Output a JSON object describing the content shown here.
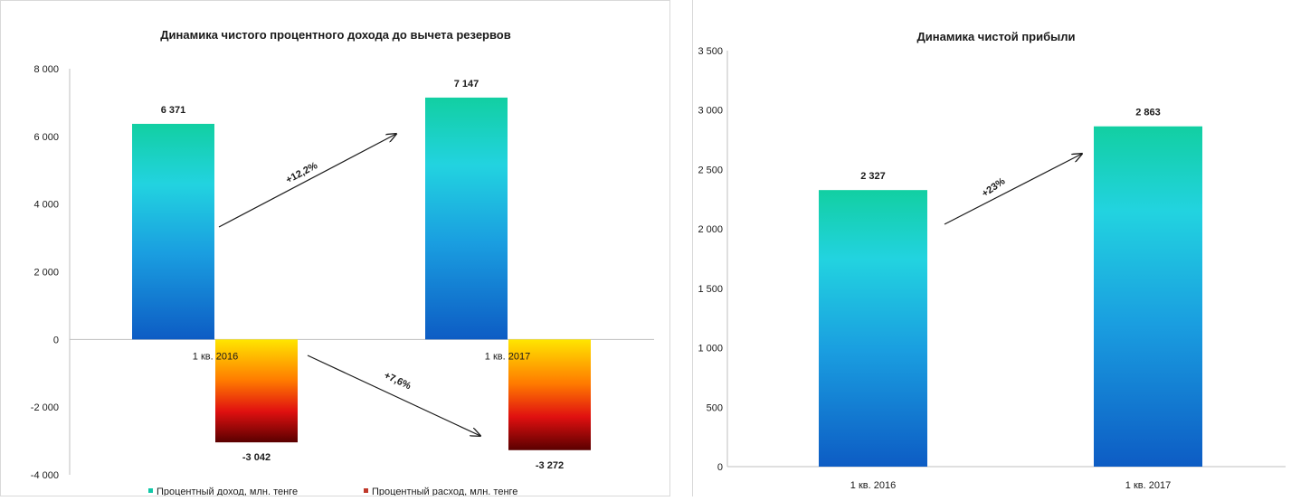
{
  "chart_data": [
    {
      "type": "bar",
      "title": "Динамика чистого процентного дохода до вычета резервов",
      "categories": [
        "1 кв. 2016",
        "1 кв. 2017"
      ],
      "series": [
        {
          "name": "Процентный доход, млн. тенге",
          "values": [
            6371,
            7147
          ],
          "labels": [
            "6 371",
            "7 147"
          ],
          "color": "#12c8a8"
        },
        {
          "name": "Процентный расход, млн. тенге",
          "values": [
            -3042,
            -3272
          ],
          "labels": [
            "-3 042",
            "-3 272"
          ],
          "color": "#c0392b"
        }
      ],
      "ylim": [
        -4000,
        8000
      ],
      "yticks": [
        8000,
        6000,
        4000,
        2000,
        0,
        -2000,
        -4000
      ],
      "ytick_labels": [
        "8 000",
        "6 000",
        "4 000",
        "2 000",
        "0",
        "-2 000",
        "-4 000"
      ],
      "annotations": [
        "+12,2%",
        "+7,6%"
      ],
      "legend_position": "bottom"
    },
    {
      "type": "bar",
      "title": "Динамика чистой прибыли",
      "categories": [
        "1 кв. 2016",
        "1 кв. 2017"
      ],
      "series": [
        {
          "values": [
            2327,
            2863
          ],
          "labels": [
            "2 327",
            "2 863"
          ]
        }
      ],
      "ylim": [
        0,
        3500
      ],
      "yticks": [
        3500,
        3000,
        2500,
        2000,
        1500,
        1000,
        500,
        0
      ],
      "ytick_labels": [
        "3 500",
        "3 000",
        "2 500",
        "2 000",
        "1 500",
        "1 000",
        "500",
        "0"
      ],
      "annotations": [
        "+23%"
      ]
    }
  ]
}
